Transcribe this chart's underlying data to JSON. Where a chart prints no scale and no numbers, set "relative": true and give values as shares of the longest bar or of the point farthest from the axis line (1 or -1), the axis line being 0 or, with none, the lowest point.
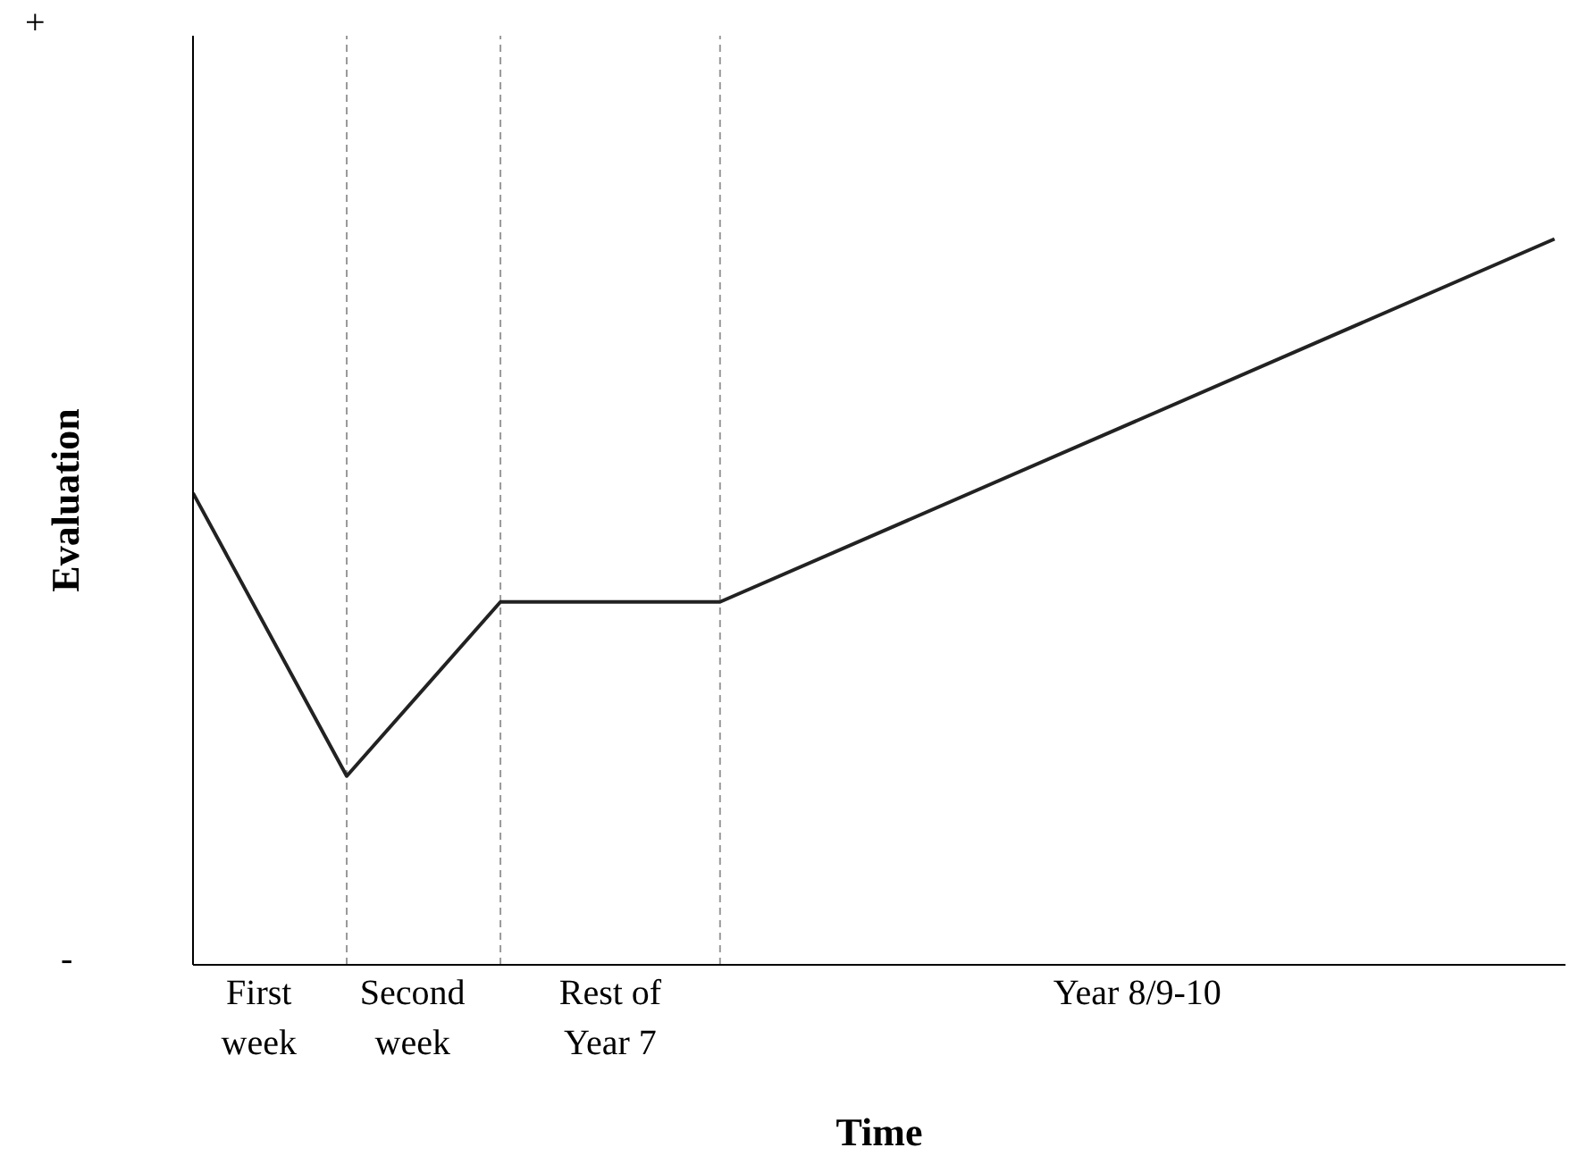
{
  "chart_data": {
    "type": "line",
    "relative": true,
    "xlabel": "Time",
    "ylabel": "Evaluation",
    "categories": [
      null,
      null,
      null,
      "First week",
      null,
      null,
      null,
      null,
      null,
      null,
      "Second week",
      null,
      null,
      null,
      null,
      null,
      null,
      null,
      null,
      "Rest of Year 7",
      null,
      null,
      null,
      null,
      null,
      null,
      null,
      null,
      null,
      null,
      null,
      null,
      null,
      null,
      null,
      null,
      null,
      null,
      null,
      null,
      null,
      null,
      null,
      "Year 8/9-10",
      null,
      null,
      null,
      null,
      null,
      null,
      null,
      null,
      null,
      null,
      null,
      null,
      null,
      null,
      null,
      null,
      null,
      null,
      null
    ],
    "series": [
      {
        "color": "#222222",
        "values": [
          0.65,
          null,
          null,
          null,
          null,
          null,
          null,
          0.26,
          null,
          null,
          null,
          null,
          null,
          null,
          0.5,
          null,
          null,
          null,
          null,
          null,
          null,
          null,
          null,
          null,
          0.5,
          null,
          null,
          null,
          null,
          null,
          null,
          null,
          null,
          null,
          null,
          null,
          null,
          null,
          null,
          null,
          null,
          null,
          null,
          null,
          null,
          null,
          null,
          null,
          null,
          null,
          null,
          null,
          null,
          null,
          null,
          null,
          null,
          null,
          null,
          null,
          null,
          null,
          1
        ]
      }
    ],
    "annotations": [
      "+",
      "-"
    ],
    "legend": false,
    "marker": "none",
    "line_style": "solid"
  }
}
